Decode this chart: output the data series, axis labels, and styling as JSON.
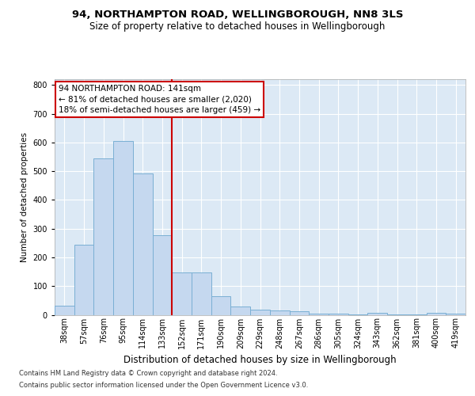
{
  "title1": "94, NORTHAMPTON ROAD, WELLINGBOROUGH, NN8 3LS",
  "title2": "Size of property relative to detached houses in Wellingborough",
  "xlabel": "Distribution of detached houses by size in Wellingborough",
  "ylabel": "Number of detached properties",
  "categories": [
    "38sqm",
    "57sqm",
    "76sqm",
    "95sqm",
    "114sqm",
    "133sqm",
    "152sqm",
    "171sqm",
    "190sqm",
    "209sqm",
    "229sqm",
    "248sqm",
    "267sqm",
    "286sqm",
    "305sqm",
    "324sqm",
    "343sqm",
    "362sqm",
    "381sqm",
    "400sqm",
    "419sqm"
  ],
  "values": [
    33,
    245,
    545,
    605,
    493,
    278,
    147,
    147,
    65,
    30,
    18,
    14,
    12,
    5,
    3,
    2,
    8,
    2,
    2,
    7,
    5
  ],
  "bar_color": "#c5d8ef",
  "bar_edge_color": "#7aafd4",
  "vline_x": 5.5,
  "vline_color": "#cc0000",
  "annotation_text": "94 NORTHAMPTON ROAD: 141sqm\n← 81% of detached houses are smaller (2,020)\n18% of semi-detached houses are larger (459) →",
  "annotation_box_facecolor": "#ffffff",
  "annotation_box_edgecolor": "#cc0000",
  "ylim": [
    0,
    820
  ],
  "yticks": [
    0,
    100,
    200,
    300,
    400,
    500,
    600,
    700,
    800
  ],
  "footer1": "Contains HM Land Registry data © Crown copyright and database right 2024.",
  "footer2": "Contains public sector information licensed under the Open Government Licence v3.0.",
  "fig_facecolor": "#ffffff",
  "plot_facecolor": "#dce9f5",
  "grid_color": "#ffffff",
  "title1_fontsize": 9.5,
  "title2_fontsize": 8.5,
  "xlabel_fontsize": 8.5,
  "ylabel_fontsize": 7.5,
  "tick_fontsize": 7,
  "footer_fontsize": 6,
  "ann_fontsize": 7.5
}
